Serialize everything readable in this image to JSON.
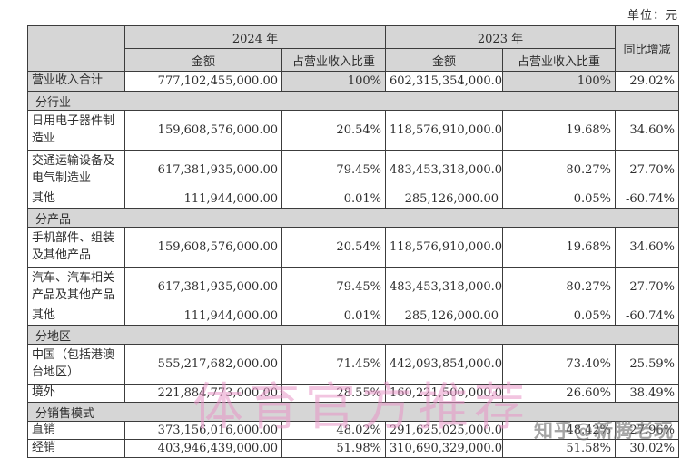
{
  "unit_note": "单位：元",
  "table": {
    "headers": {
      "year_2024": "2024 年",
      "year_2023": "2023 年",
      "amount": "金额",
      "share_of_revenue": "占营业收入比重",
      "yoy_change": "同比增减"
    },
    "total_row": {
      "label": "营业收入合计",
      "amount_2024": "777,102,455,000.00",
      "share_2024": "100%",
      "amount_2023": "602,315,354,000.00",
      "share_2023": "100%",
      "yoy": "29.02%"
    },
    "sections": [
      {
        "title": "分行业",
        "rows": [
          {
            "label": "日用电子器件制造业",
            "lines": 2,
            "amount_2024": "159,608,576,000.00",
            "share_2024": "20.54%",
            "amount_2023": "118,576,910,000.00",
            "share_2023": "19.68%",
            "yoy": "34.60%"
          },
          {
            "label": "交通运输设备及电气制造业",
            "lines": 2,
            "amount_2024": "617,381,935,000.00",
            "share_2024": "79.45%",
            "amount_2023": "483,453,318,000.00",
            "share_2023": "80.27%",
            "yoy": "27.70%"
          },
          {
            "label": "其他",
            "lines": 1,
            "amount_2024": "111,944,000.00",
            "share_2024": "0.01%",
            "amount_2023": "285,126,000.00",
            "share_2023": "0.05%",
            "yoy": "-60.74%"
          }
        ]
      },
      {
        "title": "分产品",
        "rows": [
          {
            "label": "手机部件、组装及其他产品",
            "lines": 2,
            "amount_2024": "159,608,576,000.00",
            "share_2024": "20.54%",
            "amount_2023": "118,576,910,000.00",
            "share_2023": "19.68%",
            "yoy": "34.60%"
          },
          {
            "label": "汽车、汽车相关产品及其他产品",
            "lines": 2,
            "amount_2024": "617,381,935,000.00",
            "share_2024": "79.45%",
            "amount_2023": "483,453,318,000.00",
            "share_2023": "80.27%",
            "yoy": "27.70%"
          },
          {
            "label": "其他",
            "lines": 1,
            "amount_2024": "111,944,000.00",
            "share_2024": "0.01%",
            "amount_2023": "285,126,000.00",
            "share_2023": "0.05%",
            "yoy": "-60.74%"
          }
        ]
      },
      {
        "title": "分地区",
        "rows": [
          {
            "label": "中国（包括港澳台地区）",
            "lines": 2,
            "amount_2024": "555,217,682,000.00",
            "share_2024": "71.45%",
            "amount_2023": "442,093,854,000.00",
            "share_2023": "73.40%",
            "yoy": "25.59%"
          },
          {
            "label": "境外",
            "lines": 1,
            "amount_2024": "221,884,773,000.00",
            "share_2024": "28.55%",
            "amount_2023": "160,221,500,000.00",
            "share_2023": "26.60%",
            "yoy": "38.49%"
          }
        ]
      },
      {
        "title": "分销售模式",
        "rows": [
          {
            "label": "直销",
            "lines": 1,
            "amount_2024": "373,156,016,000.00",
            "share_2024": "48.02%",
            "amount_2023": "291,625,025,000.00",
            "share_2023": "48.42%",
            "yoy": "27.96%"
          },
          {
            "label": "经销",
            "lines": 1,
            "amount_2024": "403,946,439,000.00",
            "share_2024": "51.98%",
            "amount_2023": "310,690,329,000.00",
            "share_2023": "51.58%",
            "yoy": "30.02%"
          }
        ]
      }
    ]
  },
  "watermarks": {
    "pink_text": "体育官方推荐",
    "zhihu_text": "知乎@新腾老玩"
  },
  "colors": {
    "header_bg": "#d6d6d6",
    "border": "#3c3c3c",
    "watermark_pink": "#e896c6",
    "watermark_gray": "#6e6e6e"
  }
}
